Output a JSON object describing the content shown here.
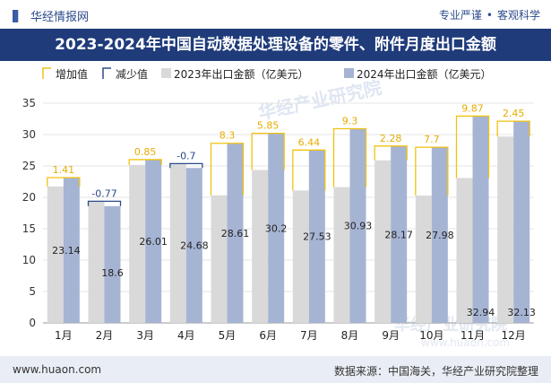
{
  "header": {
    "brand": "华经情报网",
    "tagline_left": "专业严谨",
    "tagline_right": "客观科学"
  },
  "title": "2023-2024年中国自动数据处理设备的零件、附件月度出口金额",
  "footer": {
    "url": "www.huaon.com",
    "source": "数据来源：中国海关，华经产业研究院整理"
  },
  "watermark": "华经产业研究院",
  "watermark_url": "www.huaon.com",
  "colors": {
    "bar_2023": "#d9d9d9",
    "bar_2024": "#a6b4d4",
    "increase_border": "#f0c20f",
    "decrease_border": "#2b4a8b",
    "increase_label": "#e6ac00",
    "decrease_label": "#2b4a8b",
    "title_bg": "#1f3b7a"
  },
  "chart_data": {
    "type": "bar",
    "categories": [
      "1月",
      "2月",
      "3月",
      "4月",
      "5月",
      "6月",
      "7月",
      "8月",
      "9月",
      "10月",
      "11月",
      "12月"
    ],
    "series": [
      {
        "name": "2023年出口金额（亿美元）",
        "values": [
          21.73,
          19.37,
          25.16,
          25.38,
          20.31,
          24.35,
          21.09,
          21.63,
          25.89,
          20.28,
          23.07,
          29.68
        ]
      },
      {
        "name": "2024年出口金额（亿美元）",
        "values": [
          23.14,
          18.6,
          26.01,
          24.68,
          28.61,
          30.2,
          27.53,
          30.93,
          28.17,
          27.98,
          32.94,
          32.13
        ]
      }
    ],
    "value_labels_2024": [
      "23.14",
      "18.6",
      "26.01",
      "24.68",
      "28.61",
      "30.2",
      "27.53",
      "30.93",
      "28.17",
      "27.98",
      "32.94",
      "32.13"
    ],
    "change": {
      "values": [
        1.41,
        -0.77,
        0.85,
        -0.7,
        8.3,
        5.85,
        6.44,
        9.3,
        2.28,
        7.7,
        9.87,
        2.45
      ],
      "labels": [
        "1.41",
        "-0.77",
        "0.85",
        "-0.7",
        "8.3",
        "5.85",
        "6.44",
        "9.3",
        "2.28",
        "7.7",
        "9.87",
        "2.45"
      ]
    },
    "legend": [
      {
        "key": "increase",
        "label": "增加值"
      },
      {
        "key": "decrease",
        "label": "减少值"
      },
      {
        "key": "s2023",
        "label": "2023年出口金额（亿美元）"
      },
      {
        "key": "s2024",
        "label": "2024年出口金额（亿美元）"
      }
    ],
    "legend_position": "top-left",
    "ylim": [
      0,
      35
    ],
    "yticks": [
      "0",
      "5",
      "10",
      "15",
      "20",
      "25",
      "30",
      "35"
    ],
    "grid": true
  }
}
